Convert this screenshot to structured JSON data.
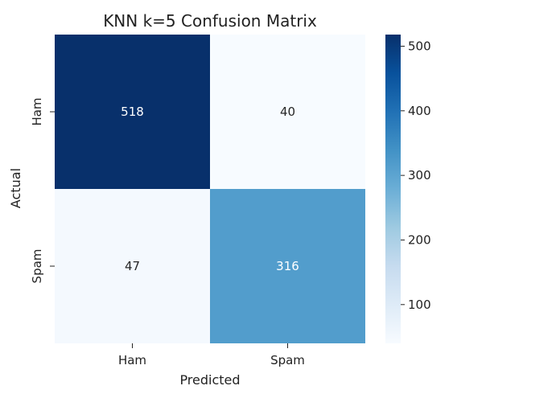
{
  "chart_data": {
    "type": "heatmap",
    "title": "KNN k=5 Confusion Matrix",
    "xlabel": "Predicted",
    "ylabel": "Actual",
    "x_categories": [
      "Ham",
      "Spam"
    ],
    "y_categories": [
      "Ham",
      "Spam"
    ],
    "values": [
      [
        518,
        40
      ],
      [
        47,
        316
      ]
    ],
    "colorbar": {
      "min": 40,
      "max": 518,
      "ticks": [
        100,
        200,
        300,
        400,
        500
      ]
    },
    "colormap": "Blues",
    "colors": {
      "low": "#f7fbff",
      "high": "#08306b",
      "text_dark": "#262626",
      "text_light": "#ffffff"
    },
    "grid": false
  }
}
